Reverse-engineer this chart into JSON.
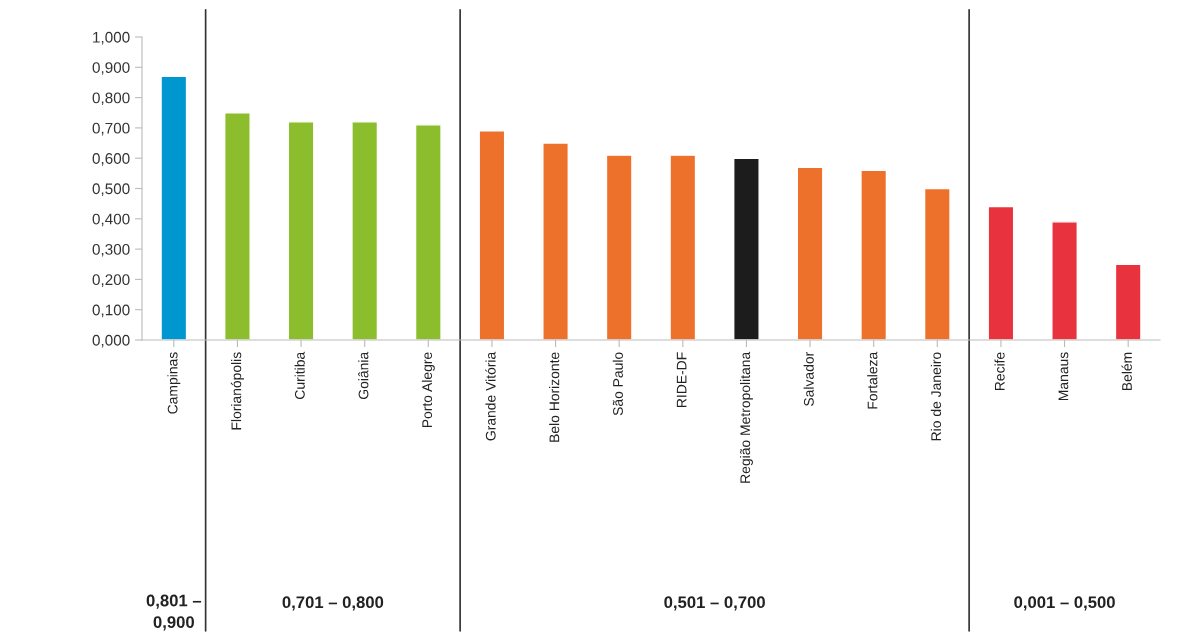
{
  "chart_data": {
    "type": "bar",
    "categories": [
      "Campinas",
      "Florianópolis",
      "Curitiba",
      "Goiânia",
      "Porto Alegre",
      "Grande Vitória",
      "Belo Horizonte",
      "São Paulo",
      "RIDE-DF",
      "Região Metropolitana",
      "Salvador",
      "Fortaleza",
      "Rio de Janeiro",
      "Recife",
      "Manaus",
      "Belém"
    ],
    "values": [
      0.87,
      0.75,
      0.72,
      0.72,
      0.71,
      0.69,
      0.65,
      0.61,
      0.61,
      0.6,
      0.57,
      0.56,
      0.5,
      0.44,
      0.39,
      0.25
    ],
    "colors": [
      "#0096d0",
      "#8bbd2d",
      "#8bbd2d",
      "#8bbd2d",
      "#8bbd2d",
      "#ee712b",
      "#ee712b",
      "#ee712b",
      "#ee712b",
      "#1c1c1c",
      "#ee712b",
      "#ee712b",
      "#ee712b",
      "#e8333e",
      "#e8333e",
      "#e8333e"
    ],
    "ylim": [
      0,
      1
    ],
    "yticks": [
      {
        "value": 0,
        "label": "0,000"
      },
      {
        "value": 0.1,
        "label": "0,100"
      },
      {
        "value": 0.2,
        "label": "0,200"
      },
      {
        "value": 0.3,
        "label": "0,300"
      },
      {
        "value": 0.4,
        "label": "0,400"
      },
      {
        "value": 0.5,
        "label": "0,500"
      },
      {
        "value": 0.6,
        "label": "0,600"
      },
      {
        "value": 0.7,
        "label": "0,700"
      },
      {
        "value": 0.8,
        "label": "0,800"
      },
      {
        "value": 0.9,
        "label": "0,900"
      },
      {
        "value": 1,
        "label": "1,000"
      }
    ],
    "grid": false,
    "legend": false,
    "annotations": [
      "0,801 – 0,900",
      "0,701 – 0,800",
      "0,501 – 0,700",
      "0,001 – 0,500"
    ]
  }
}
